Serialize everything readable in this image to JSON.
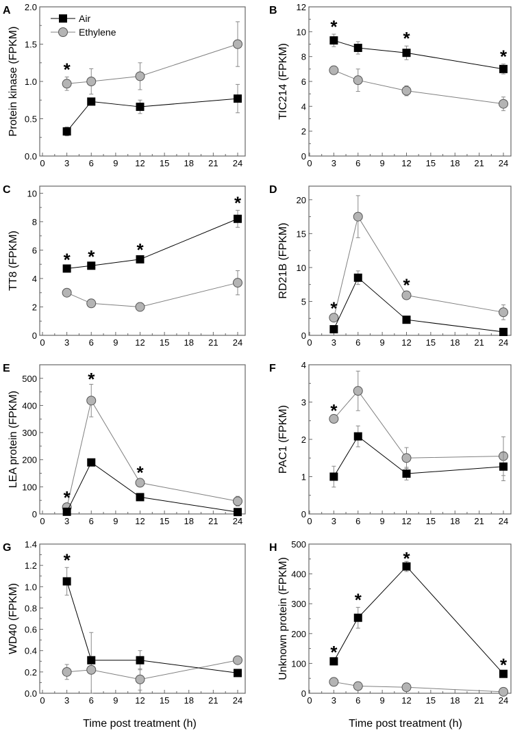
{
  "chart_data": {
    "type": "line",
    "xlabel": "Time post treatment (h)",
    "x": [
      3,
      6,
      12,
      24
    ],
    "x_ticks": [
      0,
      3,
      6,
      9,
      12,
      15,
      18,
      21,
      24
    ],
    "legend": {
      "placement": "top-left",
      "entries": [
        "Air",
        "Ethylene"
      ]
    },
    "colors": {
      "air": "#000000",
      "ethylene_fill": "#b4b4b4",
      "ethylene_line": "#7f7f7f",
      "axis": "#666666"
    },
    "panels": [
      {
        "letter": "A",
        "ylabel": "Protein kinase (FPKM)",
        "ylim": [
          0,
          2.0
        ],
        "yticks": [
          "0.0",
          "0.5",
          "1.0",
          "1.5",
          "2.0"
        ],
        "ytick_vals": [
          0,
          0.5,
          1.0,
          1.5,
          2.0
        ],
        "series": [
          {
            "name": "Air",
            "values": [
              0.33,
              0.73,
              0.66,
              0.77
            ],
            "err": [
              0.06,
              0.02,
              0.09,
              0.19
            ]
          },
          {
            "name": "Ethylene",
            "values": [
              0.97,
              1.0,
              1.07,
              1.5
            ],
            "err": [
              0.09,
              0.17,
              0.18,
              0.3
            ]
          }
        ],
        "significant_at": [
          3
        ],
        "star": "*"
      },
      {
        "letter": "B",
        "ylabel": "TIC214 (FPKM)",
        "ylim": [
          0,
          12
        ],
        "yticks": [
          "0",
          "2",
          "4",
          "6",
          "8",
          "10",
          "12"
        ],
        "ytick_vals": [
          0,
          2,
          4,
          6,
          8,
          10,
          12
        ],
        "series": [
          {
            "name": "Air",
            "values": [
              9.3,
              8.7,
              8.3,
              7.0
            ],
            "err": [
              0.5,
              0.5,
              0.55,
              0.4
            ]
          },
          {
            "name": "Ethylene",
            "values": [
              6.9,
              6.1,
              5.25,
              4.2
            ],
            "err": [
              0.1,
              0.9,
              0.4,
              0.55
            ]
          }
        ],
        "significant_at": [
          3,
          12,
          24
        ],
        "star": "*"
      },
      {
        "letter": "C",
        "ylabel": "TT8 (FPKM)",
        "ylim": [
          0,
          10.5
        ],
        "yticks": [
          "0",
          "2",
          "4",
          "6",
          "8",
          "10"
        ],
        "ytick_vals": [
          0,
          2,
          4,
          6,
          8,
          10
        ],
        "series": [
          {
            "name": "Air",
            "values": [
              4.7,
              4.9,
              5.35,
              8.2
            ],
            "err": [
              0.1,
              0.1,
              0.15,
              0.6
            ]
          },
          {
            "name": "Ethylene",
            "values": [
              3.0,
              2.25,
              2.0,
              3.7
            ],
            "err": [
              0.1,
              0.2,
              0.3,
              0.85
            ]
          }
        ],
        "significant_at": [
          3,
          6,
          12,
          24
        ],
        "star": "*"
      },
      {
        "letter": "D",
        "ylabel": "RD21B (FPKM)",
        "ylim": [
          0,
          22
        ],
        "yticks": [
          "0",
          "5",
          "10",
          "15",
          "20"
        ],
        "ytick_vals": [
          0,
          5,
          10,
          15,
          20
        ],
        "series": [
          {
            "name": "Air",
            "values": [
              0.9,
              8.5,
              2.3,
              0.5
            ],
            "err": [
              0.1,
              1.0,
              0.2,
              0.1
            ]
          },
          {
            "name": "Ethylene",
            "values": [
              2.6,
              17.5,
              5.9,
              3.4
            ],
            "err": [
              0.3,
              3.1,
              0.4,
              1.1
            ]
          }
        ],
        "significant_at": [
          3,
          12
        ],
        "star": "*"
      },
      {
        "letter": "E",
        "ylabel": "LEA protein (FPKM)",
        "ylim": [
          0,
          550
        ],
        "yticks": [
          "0",
          "100",
          "200",
          "300",
          "400",
          "500"
        ],
        "ytick_vals": [
          0,
          100,
          200,
          300,
          400,
          500
        ],
        "series": [
          {
            "name": "Air",
            "values": [
              8,
              190,
              62,
              7
            ],
            "err": [
              3,
              10,
              5,
              2
            ]
          },
          {
            "name": "Ethylene",
            "values": [
              25,
              418,
              115,
              47
            ],
            "err": [
              8,
              60,
              10,
              18
            ]
          }
        ],
        "significant_at": [
          3,
          6,
          12
        ],
        "star": "*"
      },
      {
        "letter": "F",
        "ylabel": "PAC1 (FPKM)",
        "ylim": [
          0,
          4
        ],
        "yticks": [
          "0",
          "1",
          "2",
          "3",
          "4"
        ],
        "ytick_vals": [
          0,
          1,
          2,
          3,
          4
        ],
        "series": [
          {
            "name": "Air",
            "values": [
              1.0,
              2.08,
              1.08,
              1.27
            ],
            "err": [
              0.28,
              0.28,
              0.17,
              0.38
            ]
          },
          {
            "name": "Ethylene",
            "values": [
              2.55,
              3.3,
              1.5,
              1.55
            ],
            "err": [
              0.02,
              0.53,
              0.28,
              0.52
            ]
          }
        ],
        "significant_at": [
          3
        ],
        "star": "*"
      },
      {
        "letter": "G",
        "ylabel": "WD40 (FPKM)",
        "ylim": [
          0,
          1.4
        ],
        "yticks": [
          "0.0",
          "0.2",
          "0.4",
          "0.6",
          "0.8",
          "1.0",
          "1.2",
          "1.4"
        ],
        "ytick_vals": [
          0,
          0.2,
          0.4,
          0.6,
          0.8,
          1.0,
          1.2,
          1.4
        ],
        "series": [
          {
            "name": "Air",
            "values": [
              1.05,
              0.31,
              0.31,
              0.19
            ],
            "err": [
              0.13,
              0.0,
              0.09,
              0.0
            ]
          },
          {
            "name": "Ethylene",
            "values": [
              0.2,
              0.22,
              0.13,
              0.31
            ],
            "err": [
              0.07,
              0.35,
              0.1,
              0.02
            ]
          }
        ],
        "significant_at": [
          3
        ],
        "star": "*"
      },
      {
        "letter": "H",
        "ylabel": "Unknown protein (FPKM)",
        "ylim": [
          0,
          500
        ],
        "yticks": [
          "0",
          "100",
          "200",
          "300",
          "400",
          "500"
        ],
        "ytick_vals": [
          0,
          100,
          200,
          300,
          400,
          500
        ],
        "series": [
          {
            "name": "Air",
            "values": [
              107,
              253,
              425,
              65
            ],
            "err": [
              5,
              35,
              17,
              5
            ]
          },
          {
            "name": "Ethylene",
            "values": [
              38,
              24,
              20,
              5
            ],
            "err": [
              8,
              5,
              5,
              3
            ]
          }
        ],
        "significant_at": [
          3,
          6,
          12,
          24
        ],
        "star": "*"
      }
    ]
  }
}
